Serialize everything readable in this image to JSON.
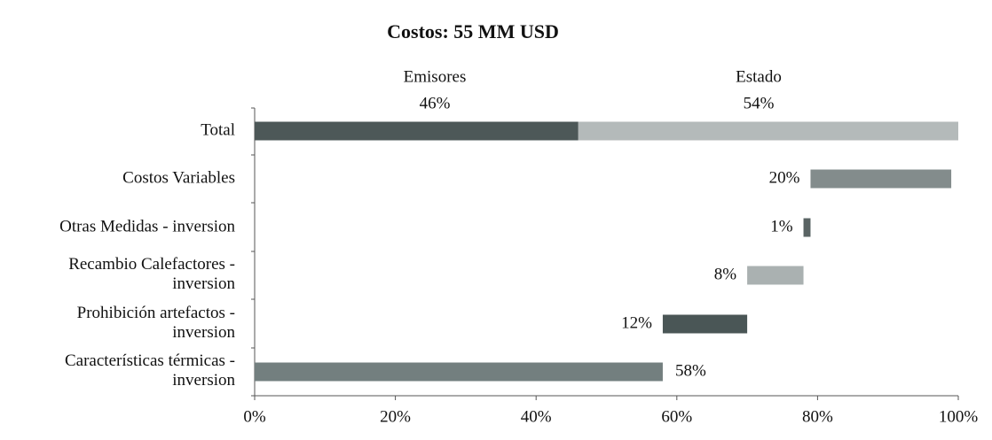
{
  "chart_data": {
    "type": "waterfall",
    "title": "Costos: 55 MM USD",
    "total": {
      "category": "Total",
      "segments": [
        {
          "name": "Emisores",
          "value": 46,
          "value_label": "46%",
          "color": "#4d5858"
        },
        {
          "name": "Estado",
          "value": 54,
          "value_label": "54%",
          "color": "#b4baba"
        }
      ]
    },
    "categories": [
      "Costos Variables",
      "Otras Medidas - inversion",
      "Recambio Calefactores -\ninversion",
      "Prohibición artefactos -\ninversion",
      "Características térmicas -\ninversion"
    ],
    "values": [
      20,
      1,
      8,
      12,
      58
    ],
    "value_labels": [
      "20%",
      "1%",
      "8%",
      "12%",
      "58%"
    ],
    "colors": [
      "#838c8c",
      "#5a6464",
      "#aab1b1",
      "#4a5656",
      "#737f7f"
    ],
    "xlim": [
      0,
      100
    ],
    "xticks": [
      {
        "value": 0,
        "label": "0%"
      },
      {
        "value": 20,
        "label": "20%"
      },
      {
        "value": 40,
        "label": "40%"
      },
      {
        "value": 60,
        "label": "60%"
      },
      {
        "value": 80,
        "label": "80%"
      },
      {
        "value": 100,
        "label": "100%"
      }
    ]
  }
}
